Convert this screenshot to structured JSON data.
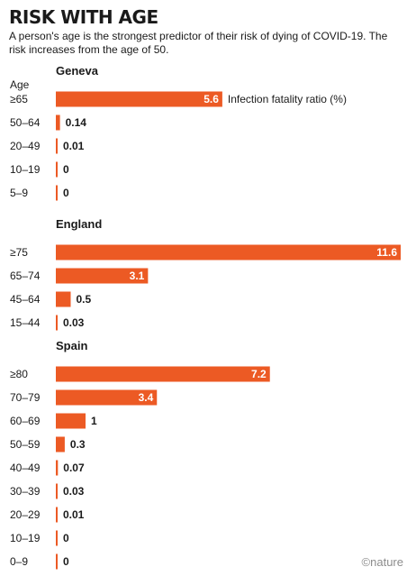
{
  "header": {
    "title": "RISK WITH AGE",
    "subtitle": "A person's age is the strongest predictor of their risk of dying of COVID-19. The risk increases from the age of 50."
  },
  "credit": "©nature",
  "colors": {
    "bar": "#ec5a24",
    "text": "#1a1a1a",
    "inside_label": "#ffffff"
  },
  "chart_data": {
    "type": "bar",
    "orientation": "horizontal",
    "y_axis_heading": "Age",
    "series_label": "Infection fatality ratio (%)",
    "xlim": [
      0,
      11.6
    ],
    "grid": false,
    "groups": [
      {
        "name": "Geneva",
        "categories": [
          "≥65",
          "50–64",
          "20–49",
          "10–19",
          "5–9"
        ],
        "values": [
          5.6,
          0.14,
          0.01,
          0,
          0
        ]
      },
      {
        "name": "England",
        "categories": [
          "≥75",
          "65–74",
          "45–64",
          "15–44"
        ],
        "values": [
          11.6,
          3.1,
          0.5,
          0.03
        ]
      },
      {
        "name": "Spain",
        "categories": [
          "≥80",
          "70–79",
          "60–69",
          "50–59",
          "40–49",
          "30–39",
          "20–29",
          "10–19",
          "0–9"
        ],
        "values": [
          7.2,
          3.4,
          1,
          0.3,
          0.07,
          0.03,
          0.01,
          0,
          0
        ]
      }
    ]
  }
}
